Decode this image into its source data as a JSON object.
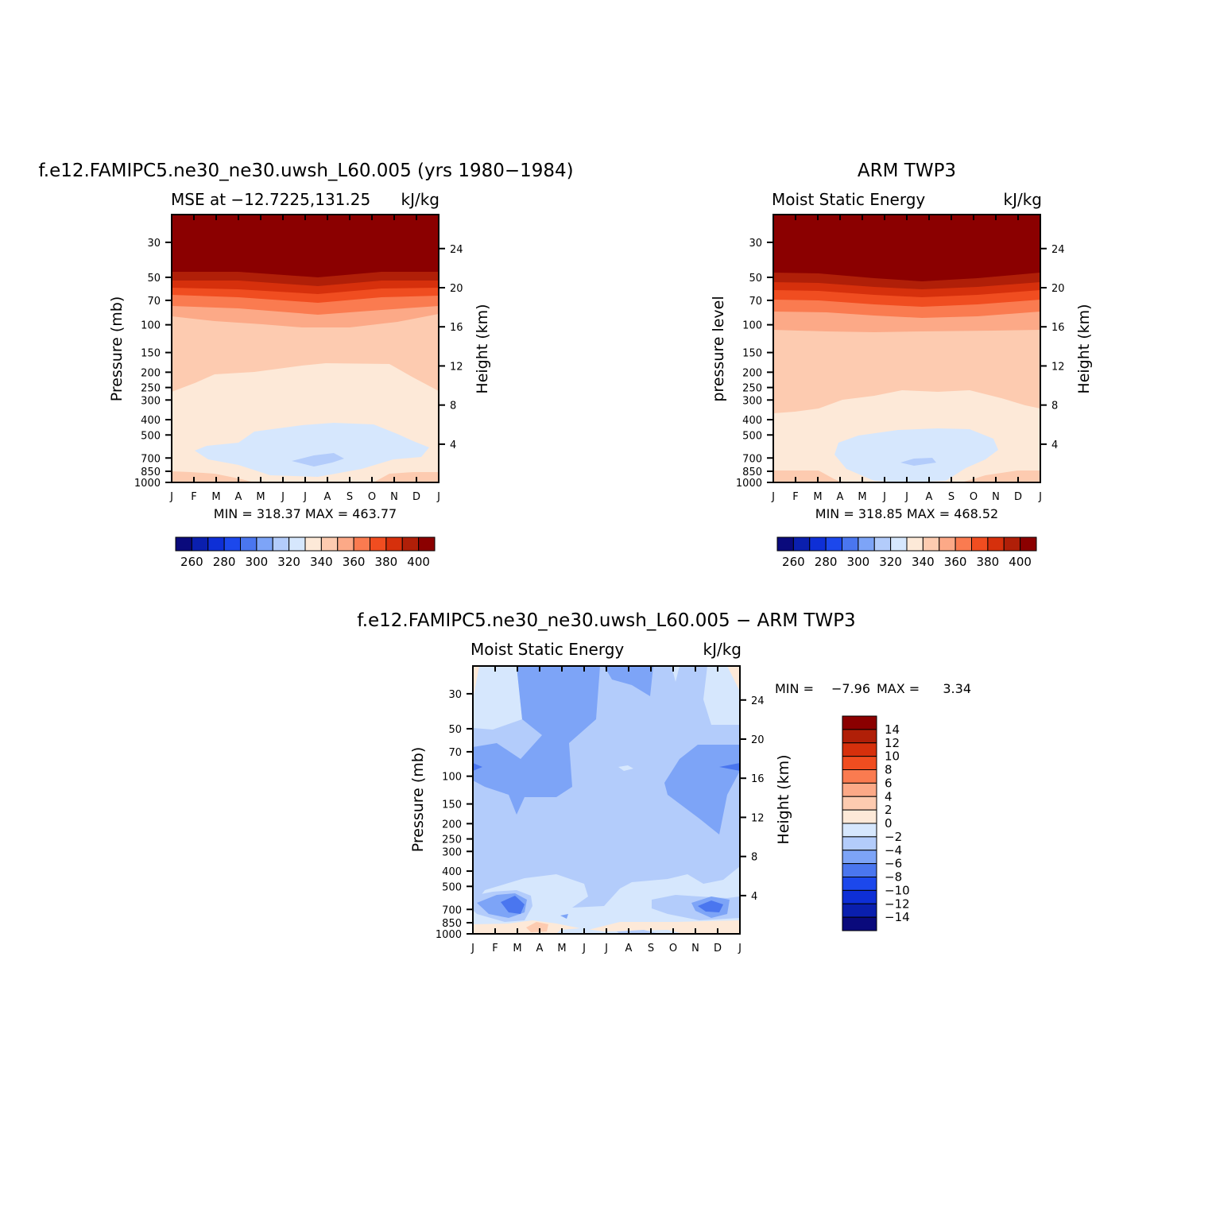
{
  "colors": {
    "scale_abs": [
      "#0a0a7c",
      "#0a1fae",
      "#0e2fd6",
      "#1c48ec",
      "#4a76ef",
      "#7da4f7",
      "#b3ccfb",
      "#d6e7fd",
      "#fde9d8",
      "#fdcbb0",
      "#fca987",
      "#fa7b50",
      "#f04d20",
      "#d6300c",
      "#b01f08",
      "#8b0000"
    ],
    "scale_diff": [
      "#0a0a7c",
      "#0a1fae",
      "#0e2fd6",
      "#1c48ec",
      "#4a76ef",
      "#7da4f7",
      "#b3ccfb",
      "#d6e7fd",
      "#fde9d8",
      "#fdcbb0",
      "#fca987",
      "#fa7b50",
      "#f04d20",
      "#d6300c",
      "#b01f08",
      "#8b0000"
    ]
  },
  "chart_data": [
    {
      "type": "heatmap",
      "title": "f.e12.FAMIPC5.ne30_ne30.uwsh_L60.005 (yrs 1980−1984)",
      "subtitle_left": "MSE at −12.7225,131.25",
      "subtitle_right": "kJ/kg",
      "ylabel": "Pressure (mb)",
      "y2label": "Height (km)",
      "x_ticks": [
        "J",
        "F",
        "M",
        "A",
        "M",
        "J",
        "J",
        "A",
        "S",
        "O",
        "N",
        "D",
        "J"
      ],
      "y_ticks": [
        "30",
        "50",
        "70",
        "100",
        "150",
        "200",
        "250",
        "300",
        "400",
        "500",
        "700",
        "850",
        "1000"
      ],
      "y2_ticks": [
        "24",
        "20",
        "16",
        "12",
        "8",
        "4"
      ],
      "min_max": "MIN = 318.37 MAX = 463.77",
      "min": 318.37,
      "max": 463.77,
      "labelbar": [
        "260",
        "280",
        "300",
        "320",
        "340",
        "360",
        "380",
        "400"
      ]
    },
    {
      "type": "heatmap",
      "title": "ARM TWP3",
      "subtitle_left": "Moist Static Energy",
      "subtitle_right": "kJ/kg",
      "ylabel": "pressure level",
      "y2label": "Height (km)",
      "x_ticks": [
        "J",
        "F",
        "M",
        "A",
        "M",
        "J",
        "J",
        "A",
        "S",
        "O",
        "N",
        "D",
        "J"
      ],
      "y_ticks": [
        "30",
        "50",
        "70",
        "100",
        "150",
        "200",
        "250",
        "300",
        "400",
        "500",
        "700",
        "850",
        "1000"
      ],
      "y2_ticks": [
        "24",
        "20",
        "16",
        "12",
        "8",
        "4"
      ],
      "min_max": "MIN = 318.85 MAX = 468.52",
      "min": 318.85,
      "max": 468.52,
      "labelbar": [
        "260",
        "280",
        "300",
        "320",
        "340",
        "360",
        "380",
        "400"
      ]
    },
    {
      "type": "heatmap",
      "title": "f.e12.FAMIPC5.ne30_ne30.uwsh_L60.005 − ARM TWP3",
      "subtitle_left": "Moist Static Energy",
      "subtitle_right": "kJ/kg",
      "ylabel": "Pressure (mb)",
      "y2label": "Height (km)",
      "x_ticks": [
        "J",
        "F",
        "M",
        "A",
        "M",
        "J",
        "J",
        "A",
        "S",
        "O",
        "N",
        "D",
        "J"
      ],
      "y_ticks": [
        "30",
        "50",
        "70",
        "100",
        "150",
        "200",
        "250",
        "300",
        "400",
        "500",
        "700",
        "850",
        "1000"
      ],
      "y2_ticks": [
        "24",
        "20",
        "16",
        "12",
        "8",
        "4"
      ],
      "min_label": "MIN =",
      "min_value": "−7.96",
      "max_label": "MAX =",
      "max_value": "3.34",
      "min": -7.96,
      "max": 3.34,
      "labelbar": [
        "14",
        "12",
        "10",
        "8",
        "6",
        "4",
        "2",
        "0",
        "−2",
        "−4",
        "−6",
        "−8",
        "−10",
        "−12",
        "−14"
      ]
    }
  ]
}
